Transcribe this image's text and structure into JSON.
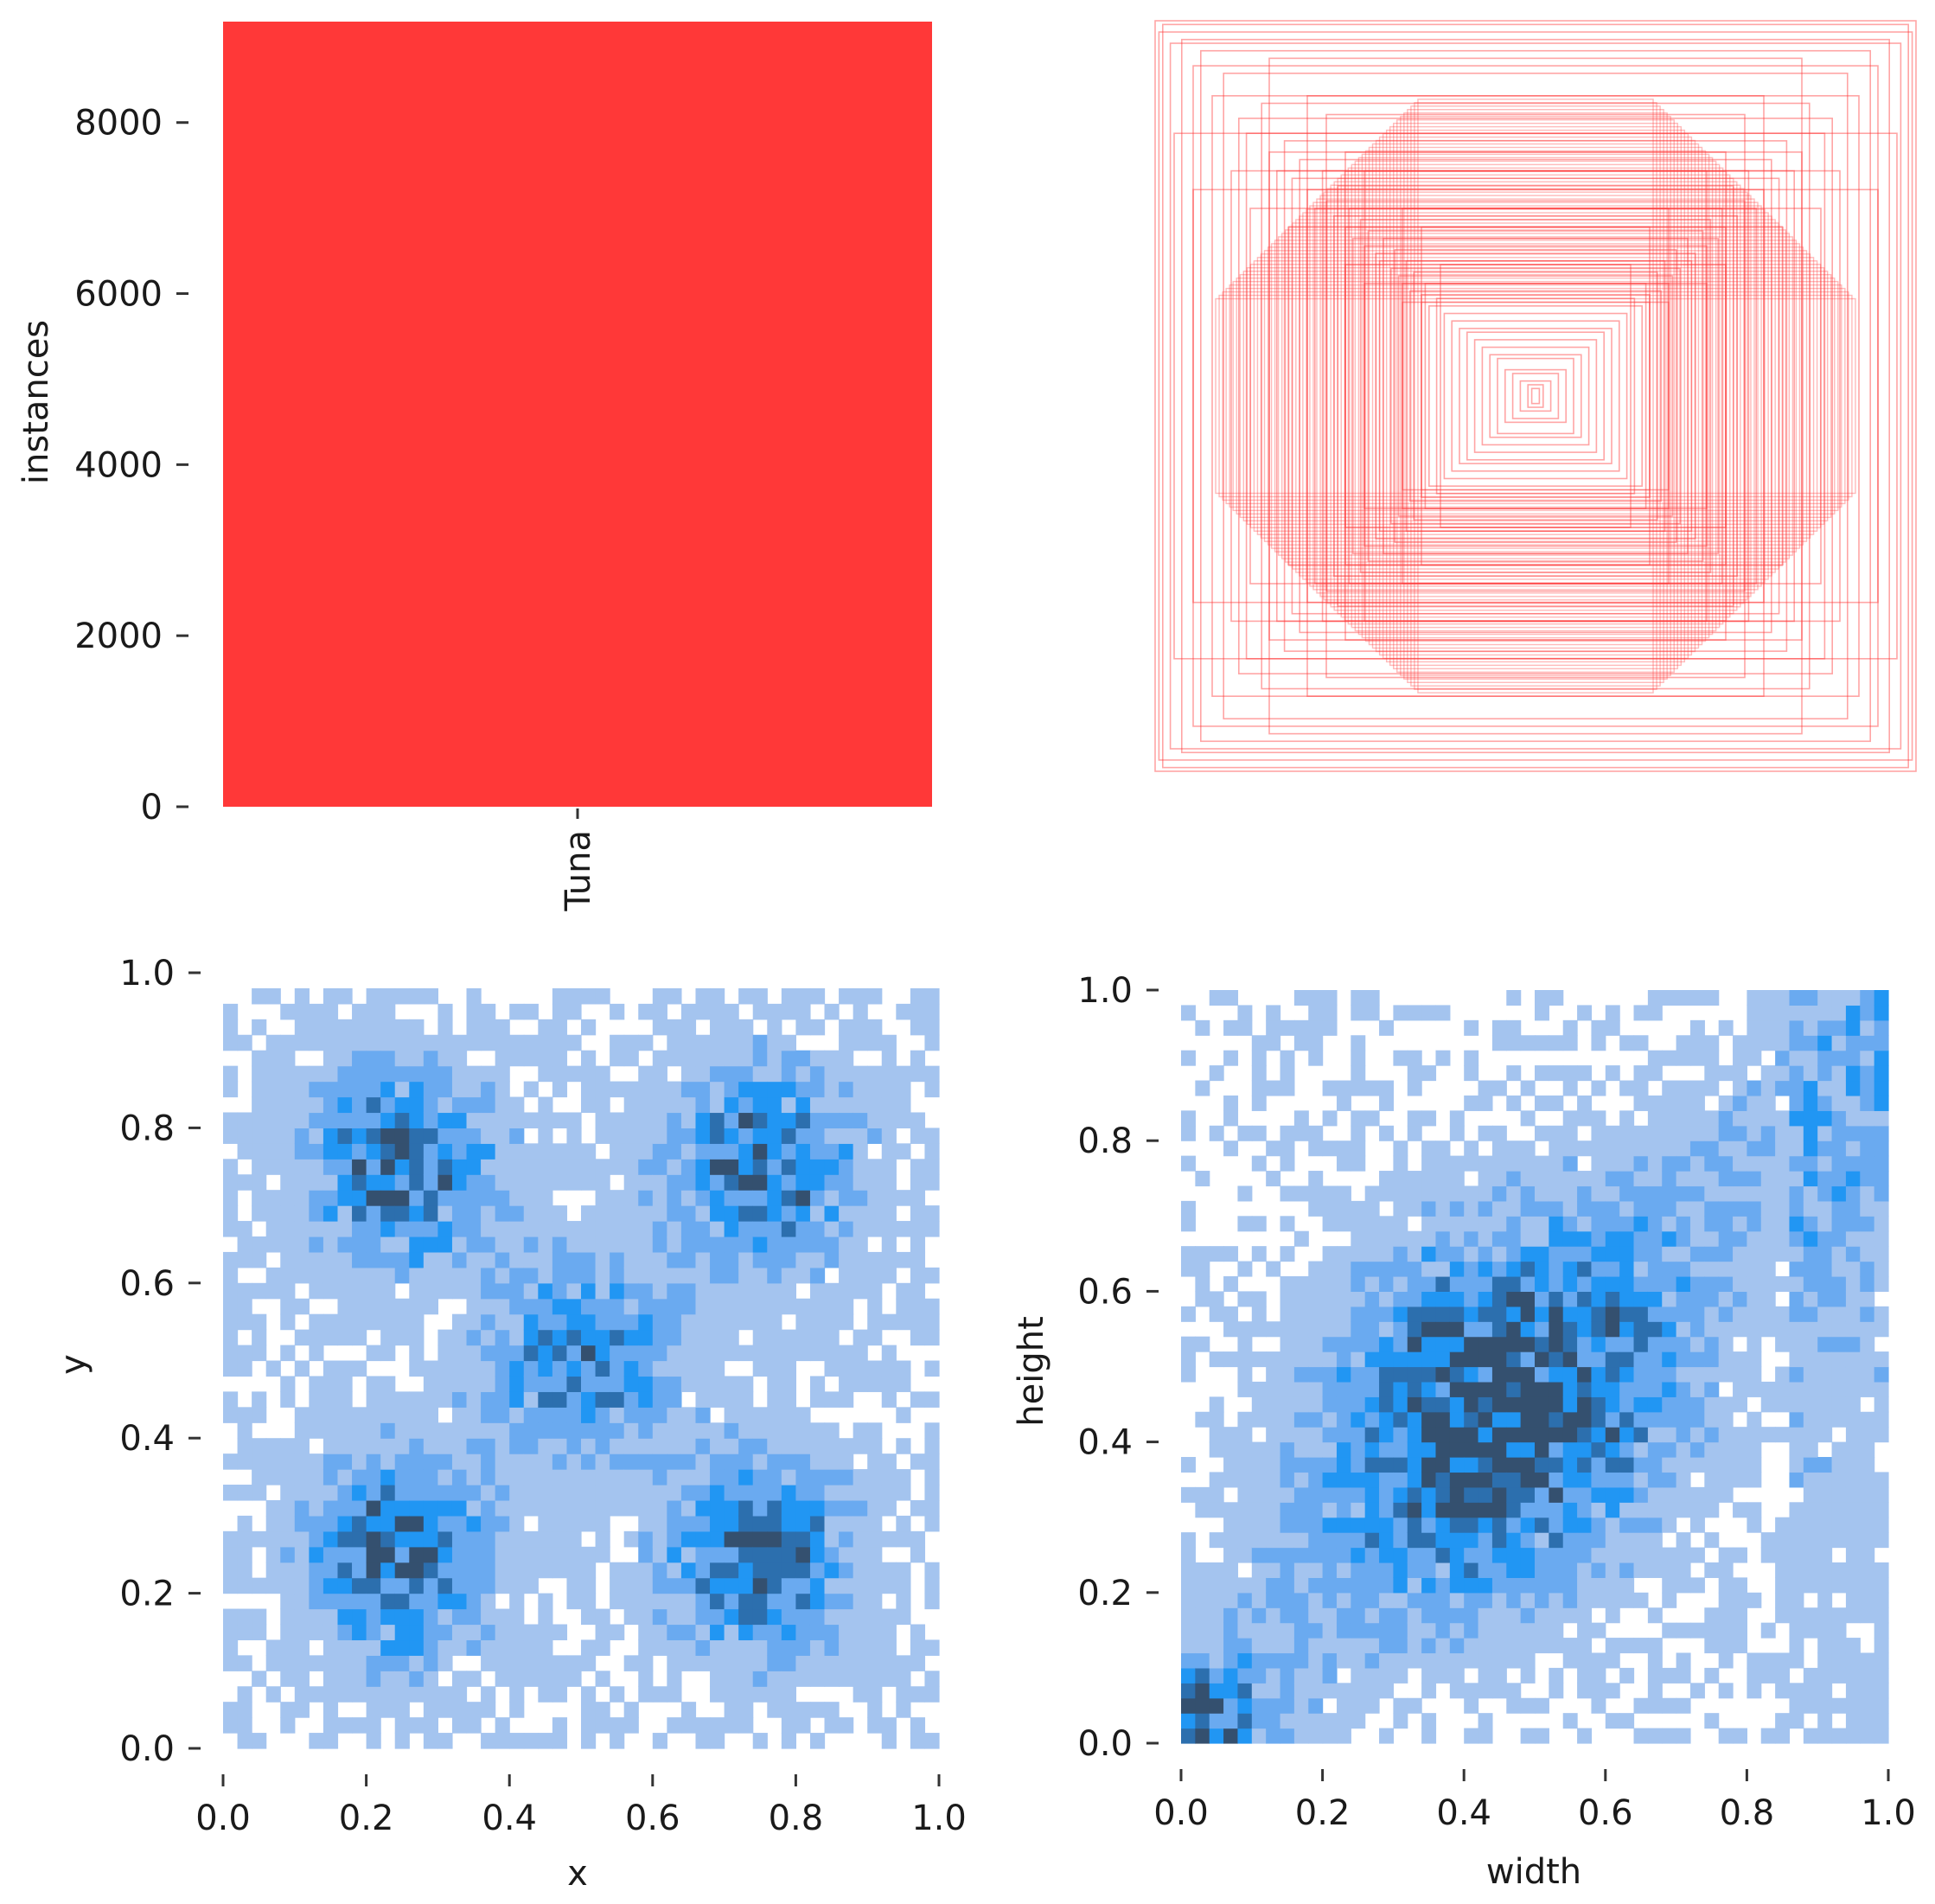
{
  "chart_data": [
    {
      "type": "bar",
      "categories": [
        "Tuna"
      ],
      "values": [
        9180
      ],
      "xlabel": "",
      "ylabel": "instances",
      "ylim": [
        0,
        9180
      ],
      "yticks": [
        "0",
        "2000",
        "4000",
        "6000",
        "8000"
      ],
      "bar_color": "#ff3838",
      "grid": false
    },
    {
      "type": "scatter",
      "description_of_marks": "overlay of normalized bounding-box outlines centered at (0.5, 0.5)",
      "box_sizes": [
        [
          1.0,
          1.0
        ],
        [
          0.99,
          0.97
        ],
        [
          0.98,
          0.99
        ],
        [
          0.96,
          0.94
        ],
        [
          0.93,
          0.95
        ],
        [
          0.9,
          0.88
        ],
        [
          0.88,
          0.92
        ],
        [
          0.85,
          0.8
        ],
        [
          0.82,
          0.86
        ],
        [
          0.78,
          0.74
        ],
        [
          0.76,
          0.7
        ],
        [
          0.72,
          0.78
        ],
        [
          0.7,
          0.65
        ],
        [
          0.68,
          0.6
        ],
        [
          0.66,
          0.68
        ],
        [
          0.64,
          0.58
        ],
        [
          0.62,
          0.63
        ],
        [
          0.6,
          0.55
        ],
        [
          0.58,
          0.5
        ],
        [
          0.56,
          0.6
        ],
        [
          0.55,
          0.52
        ],
        [
          0.53,
          0.48
        ],
        [
          0.52,
          0.56
        ],
        [
          0.5,
          0.45
        ],
        [
          0.49,
          0.5
        ],
        [
          0.48,
          0.42
        ],
        [
          0.46,
          0.47
        ],
        [
          0.45,
          0.4
        ],
        [
          0.44,
          0.44
        ],
        [
          0.42,
          0.38
        ],
        [
          0.41,
          0.36
        ],
        [
          0.4,
          0.42
        ],
        [
          0.38,
          0.34
        ],
        [
          0.37,
          0.39
        ],
        [
          0.36,
          0.32
        ],
        [
          0.35,
          0.3
        ],
        [
          0.34,
          0.36
        ],
        [
          0.33,
          0.28
        ],
        [
          0.32,
          0.33
        ],
        [
          0.3,
          0.27
        ],
        [
          0.29,
          0.3
        ],
        [
          0.28,
          0.24
        ],
        [
          0.26,
          0.26
        ],
        [
          0.24,
          0.22
        ],
        [
          0.22,
          0.2
        ],
        [
          0.2,
          0.18
        ],
        [
          0.18,
          0.17
        ],
        [
          0.16,
          0.15
        ],
        [
          0.14,
          0.13
        ],
        [
          0.12,
          0.11
        ],
        [
          0.1,
          0.1
        ],
        [
          0.08,
          0.07
        ],
        [
          0.06,
          0.06
        ],
        [
          0.04,
          0.04
        ],
        [
          0.02,
          0.03
        ],
        [
          0.01,
          0.02
        ],
        [
          0.95,
          0.7
        ],
        [
          0.7,
          0.9
        ],
        [
          0.8,
          0.6
        ],
        [
          0.6,
          0.8
        ],
        [
          0.9,
          0.55
        ],
        [
          0.55,
          0.75
        ],
        [
          0.75,
          0.5
        ],
        [
          0.5,
          0.65
        ],
        [
          0.65,
          0.45
        ],
        [
          0.45,
          0.6
        ],
        [
          0.35,
          0.5
        ],
        [
          0.5,
          0.35
        ],
        [
          0.3,
          0.45
        ],
        [
          0.45,
          0.3
        ],
        [
          0.25,
          0.35
        ],
        [
          0.35,
          0.25
        ]
      ],
      "color": "#ff3838"
    },
    {
      "type": "heatmap",
      "xlabel": "x",
      "ylabel": "y",
      "xlim": [
        0,
        1
      ],
      "ylim": [
        0,
        1
      ],
      "xticks": [
        "0.0",
        "0.2",
        "0.4",
        "0.6",
        "0.8",
        "1.0"
      ],
      "yticks": [
        "0.0",
        "0.2",
        "0.4",
        "0.6",
        "0.8",
        "1.0"
      ],
      "bins": 50,
      "density_centers": [
        {
          "x": 0.25,
          "y": 0.75,
          "weight": 1.0
        },
        {
          "x": 0.75,
          "y": 0.75,
          "weight": 1.0
        },
        {
          "x": 0.25,
          "y": 0.25,
          "weight": 1.0
        },
        {
          "x": 0.75,
          "y": 0.25,
          "weight": 1.0
        },
        {
          "x": 0.5,
          "y": 0.5,
          "weight": 0.8
        }
      ],
      "colors": [
        "#a4c4ef",
        "#6aaaf0",
        "#2196f3",
        "#2c6fae",
        "#34506f"
      ]
    },
    {
      "type": "heatmap",
      "xlabel": "width",
      "ylabel": "height",
      "xlim": [
        0,
        1
      ],
      "ylim": [
        0,
        1
      ],
      "xticks": [
        "0.0",
        "0.2",
        "0.4",
        "0.6",
        "0.8",
        "1.0"
      ],
      "yticks": [
        "0.0",
        "0.2",
        "0.4",
        "0.6",
        "0.8",
        "1.0"
      ],
      "bins": 50,
      "density_centers": [
        {
          "x": 0.45,
          "y": 0.45,
          "weight": 1.0
        },
        {
          "x": 0.03,
          "y": 0.03,
          "weight": 0.9
        }
      ],
      "colors": [
        "#a4c4ef",
        "#6aaaf0",
        "#2196f3",
        "#2c6fae",
        "#34506f"
      ]
    }
  ]
}
